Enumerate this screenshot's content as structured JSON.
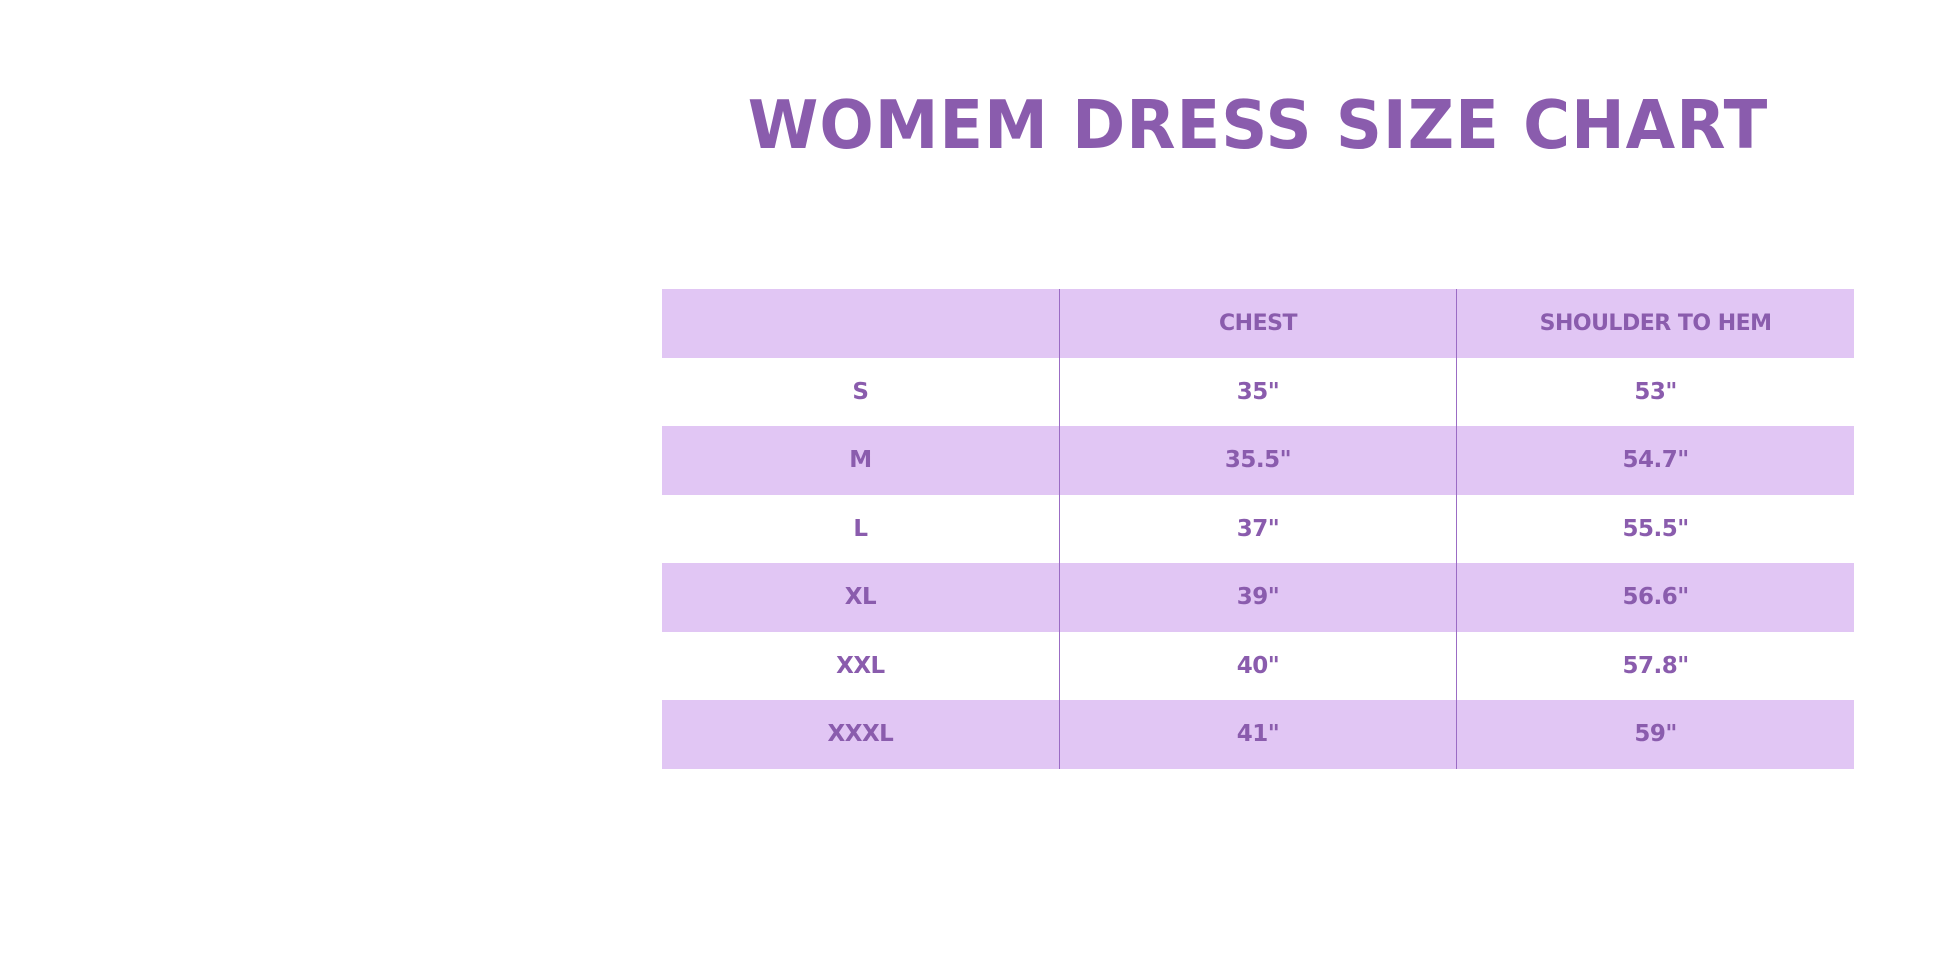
{
  "title": "WOMEM DRESS SIZE CHART",
  "colors": {
    "text": "#8a5cad",
    "row_shade": "#e1c6f4"
  },
  "table": {
    "headers": [
      "",
      "CHEST",
      "SHOULDER TO HEM"
    ],
    "rows": [
      [
        "S",
        "35\"",
        "53\""
      ],
      [
        "M",
        "35.5\"",
        "54.7\""
      ],
      [
        "L",
        "37\"",
        "55.5\""
      ],
      [
        "XL",
        "39\"",
        "56.6\""
      ],
      [
        "XXL",
        "40\"",
        "57.8\""
      ],
      [
        "XXXL",
        "41\"",
        "59\""
      ]
    ]
  }
}
